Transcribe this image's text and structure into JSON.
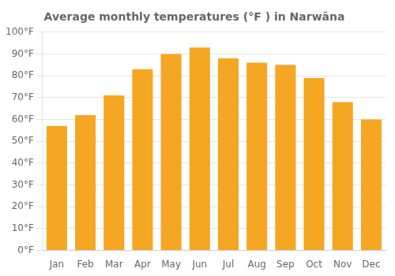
{
  "chart_data": {
    "type": "bar",
    "title": "Average monthly temperatures (°F ) in Narwāna",
    "categories": [
      "Jan",
      "Feb",
      "Mar",
      "Apr",
      "May",
      "Jun",
      "Jul",
      "Aug",
      "Sep",
      "Oct",
      "Nov",
      "Dec"
    ],
    "values": [
      57,
      62,
      71,
      83,
      90,
      93,
      88,
      86,
      85,
      79,
      68,
      60
    ],
    "color": "#F5A623",
    "ylim": [
      0,
      100
    ],
    "yticks": [
      {
        "value": 0,
        "label": "0°F"
      },
      {
        "value": 10,
        "label": "10°F"
      },
      {
        "value": 20,
        "label": "20°F"
      },
      {
        "value": 30,
        "label": "30°F"
      },
      {
        "value": 40,
        "label": "40°F"
      },
      {
        "value": 50,
        "label": "50°F"
      },
      {
        "value": 60,
        "label": "60°F"
      },
      {
        "value": 70,
        "label": "70°F"
      },
      {
        "value": 80,
        "label": "80°F"
      },
      {
        "value": 90,
        "label": "90°F"
      },
      {
        "value": 100,
        "label": "100°F"
      }
    ],
    "grid": true
  }
}
